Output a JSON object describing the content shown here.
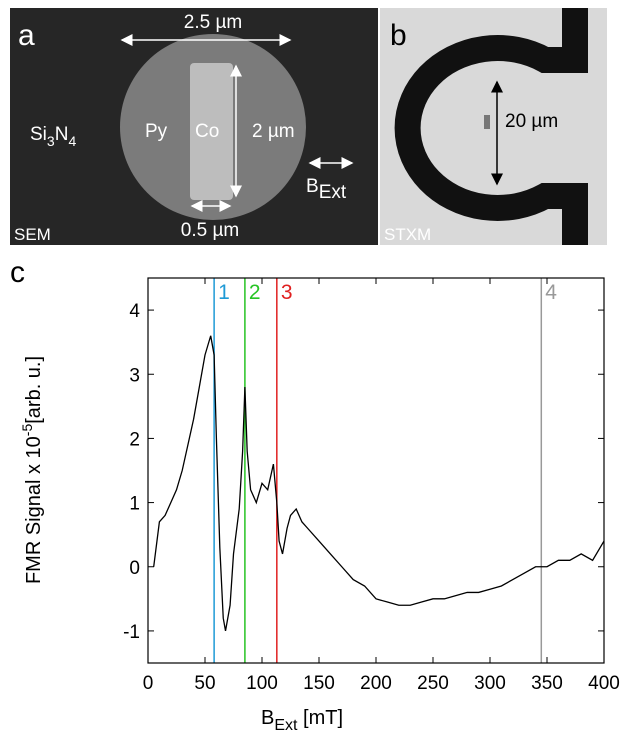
{
  "panels": {
    "a": {
      "label": "a",
      "width": "2.5 µm",
      "substrate": [
        "Si",
        "3",
        "N",
        "4"
      ],
      "py": "Py",
      "co": "Co",
      "height": "2 µm",
      "field": [
        "B",
        "Ext"
      ],
      "co_width": "0.5 µm",
      "method": "SEM"
    },
    "b": {
      "label": "b",
      "size": "20 µm",
      "method": "STXM"
    },
    "c": {
      "label": "c"
    }
  },
  "chart_data": {
    "type": "line",
    "ylabel": [
      "FMR Signal x 10",
      "-5",
      "[arb. u.]"
    ],
    "xlabel": [
      "B",
      "Ext",
      " [mT]"
    ],
    "x": [
      5,
      10,
      15,
      20,
      25,
      30,
      35,
      40,
      45,
      50,
      55,
      58,
      60,
      63,
      66,
      68,
      72,
      75,
      80,
      83,
      85,
      87,
      90,
      95,
      100,
      105,
      110,
      113,
      115,
      118,
      122,
      125,
      130,
      135,
      140,
      150,
      160,
      170,
      180,
      190,
      200,
      210,
      220,
      230,
      240,
      250,
      260,
      270,
      280,
      290,
      300,
      310,
      320,
      330,
      340,
      350,
      360,
      370,
      380,
      390,
      400
    ],
    "series": [
      {
        "color": "#000000",
        "values": [
          0,
          0.7,
          0.8,
          1.0,
          1.2,
          1.5,
          1.9,
          2.3,
          2.8,
          3.3,
          3.6,
          3.3,
          2.0,
          0.3,
          -0.8,
          -1.0,
          -0.6,
          0.2,
          0.9,
          1.8,
          2.8,
          1.8,
          1.2,
          1.0,
          1.3,
          1.2,
          1.6,
          1.0,
          0.4,
          0.2,
          0.6,
          0.8,
          0.9,
          0.7,
          0.6,
          0.4,
          0.2,
          0.0,
          -0.2,
          -0.3,
          -0.5,
          -0.55,
          -0.6,
          -0.6,
          -0.55,
          -0.5,
          -0.5,
          -0.45,
          -0.4,
          -0.4,
          -0.35,
          -0.3,
          -0.2,
          -0.1,
          0.0,
          0.0,
          0.1,
          0.1,
          0.2,
          0.1,
          0.4
        ]
      }
    ],
    "markers": [
      {
        "x": 58,
        "label": "1",
        "color": "#1e9ad6"
      },
      {
        "x": 85,
        "label": "2",
        "color": "#27c424"
      },
      {
        "x": 113,
        "label": "3",
        "color": "#e02020"
      },
      {
        "x": 345,
        "label": "4",
        "color": "#999999"
      }
    ],
    "xlim": [
      0,
      400
    ],
    "xticks": [
      0,
      50,
      100,
      150,
      200,
      250,
      300,
      350,
      400
    ],
    "ylim": [
      -1.5,
      4.5
    ],
    "yticks": [
      -1,
      0,
      1,
      2,
      3,
      4
    ]
  }
}
